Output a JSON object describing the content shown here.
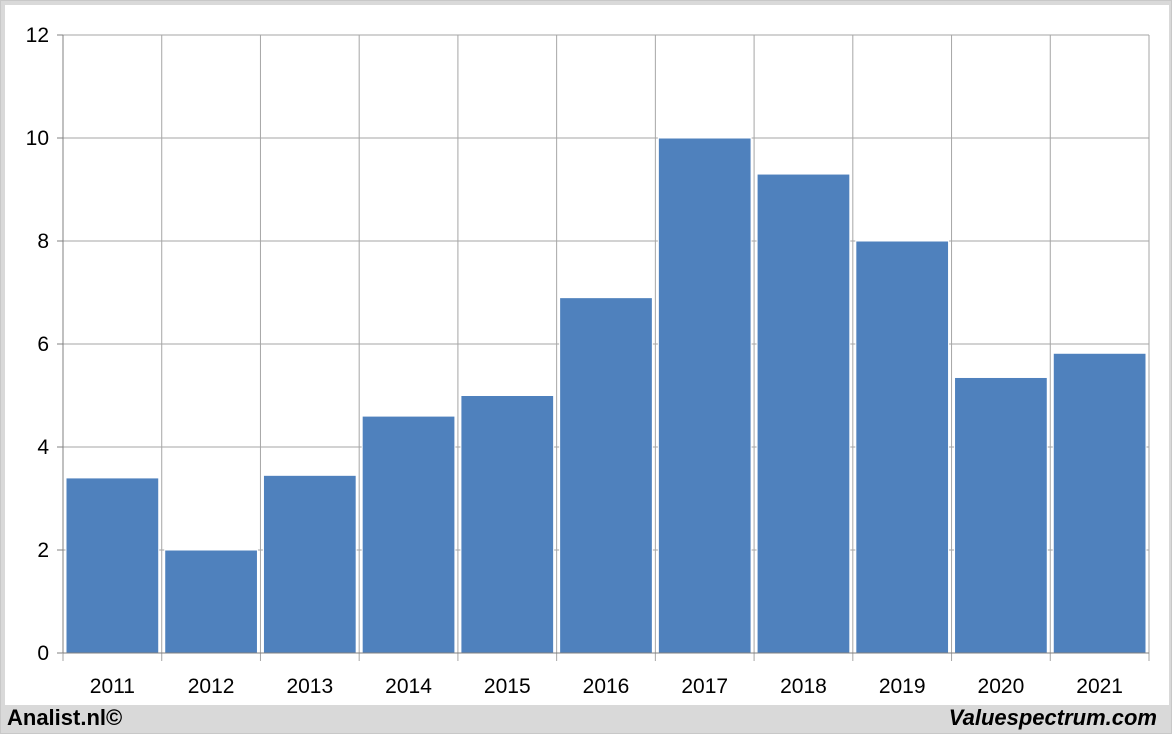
{
  "chart_data": {
    "type": "bar",
    "categories": [
      "2011",
      "2012",
      "2013",
      "2014",
      "2015",
      "2016",
      "2017",
      "2018",
      "2019",
      "2020",
      "2021"
    ],
    "values": [
      3.4,
      2.0,
      3.45,
      4.6,
      5.0,
      6.9,
      10.0,
      9.3,
      8.0,
      5.35,
      5.82
    ],
    "ylim": [
      0,
      12
    ],
    "yticks": [
      "0",
      "2",
      "4",
      "6",
      "8",
      "10",
      "12"
    ],
    "grid": true,
    "bar_color": "#4f81bd",
    "grid_color": "#a6a6a6"
  },
  "footer": {
    "left": "Analist.nl©",
    "right": "Valuespectrum.com"
  }
}
